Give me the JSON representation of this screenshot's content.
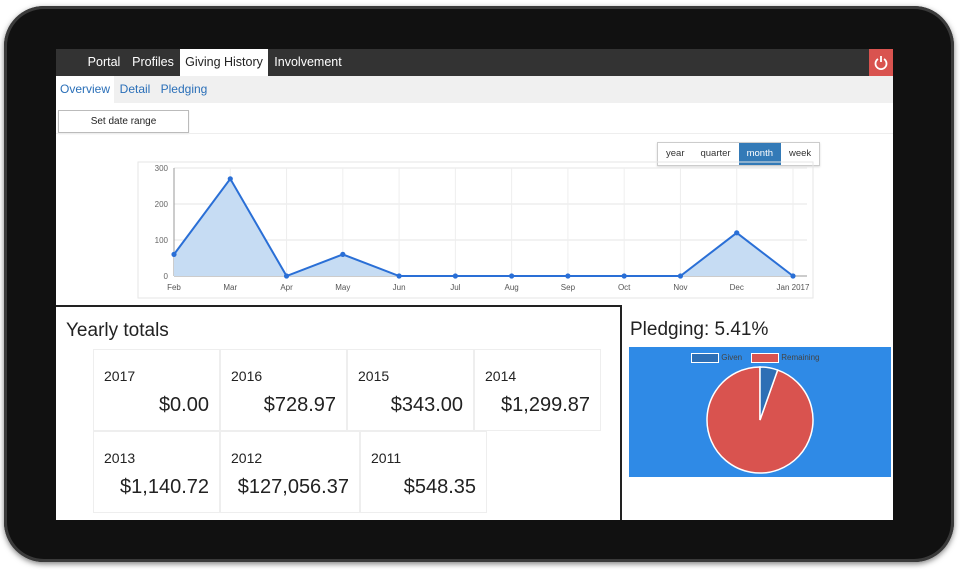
{
  "nav": {
    "tabs": [
      {
        "label": "Portal"
      },
      {
        "label": "Profiles"
      },
      {
        "label": "Giving History"
      },
      {
        "label": "Involvement"
      }
    ]
  },
  "subnav": {
    "items": [
      {
        "label": "Overview"
      },
      {
        "label": "Detail"
      },
      {
        "label": "Pledging"
      }
    ]
  },
  "toolbar": {
    "date_range_label": "Set date range"
  },
  "range": {
    "options": [
      "year",
      "quarter",
      "month",
      "week"
    ],
    "selected": "month"
  },
  "chart_data": {
    "type": "area",
    "categories": [
      "Feb",
      "Mar",
      "Apr",
      "May",
      "Jun",
      "Jul",
      "Aug",
      "Sep",
      "Oct",
      "Nov",
      "Dec",
      "Jan 2017"
    ],
    "values": [
      60,
      270,
      0,
      60,
      0,
      0,
      0,
      0,
      0,
      0,
      120,
      0
    ],
    "yticks": [
      0,
      100,
      200,
      300
    ],
    "ylim": [
      0,
      300
    ],
    "grid": true,
    "line_color": "#2a6fd6",
    "fill_color": "#c6dcf3"
  },
  "yearly": {
    "title": "Yearly totals",
    "cards": [
      {
        "year": "2017",
        "amount": "$0.00"
      },
      {
        "year": "2016",
        "amount": "$728.97"
      },
      {
        "year": "2015",
        "amount": "$343.00"
      },
      {
        "year": "2014",
        "amount": "$1,299.87"
      },
      {
        "year": "2013",
        "amount": "$1,140.72"
      },
      {
        "year": "2012",
        "amount": "$127,056.37"
      },
      {
        "year": "2011",
        "amount": "$548.35"
      }
    ]
  },
  "pledging": {
    "title": "Pledging: 5.41%",
    "given_pct": 5.41,
    "legend": [
      {
        "label": "Given",
        "color": "#2e6fb5"
      },
      {
        "label": "Remaining",
        "color": "#d9534f"
      }
    ],
    "background": "#2f8ae6"
  },
  "icons": {
    "power": "power-icon"
  }
}
